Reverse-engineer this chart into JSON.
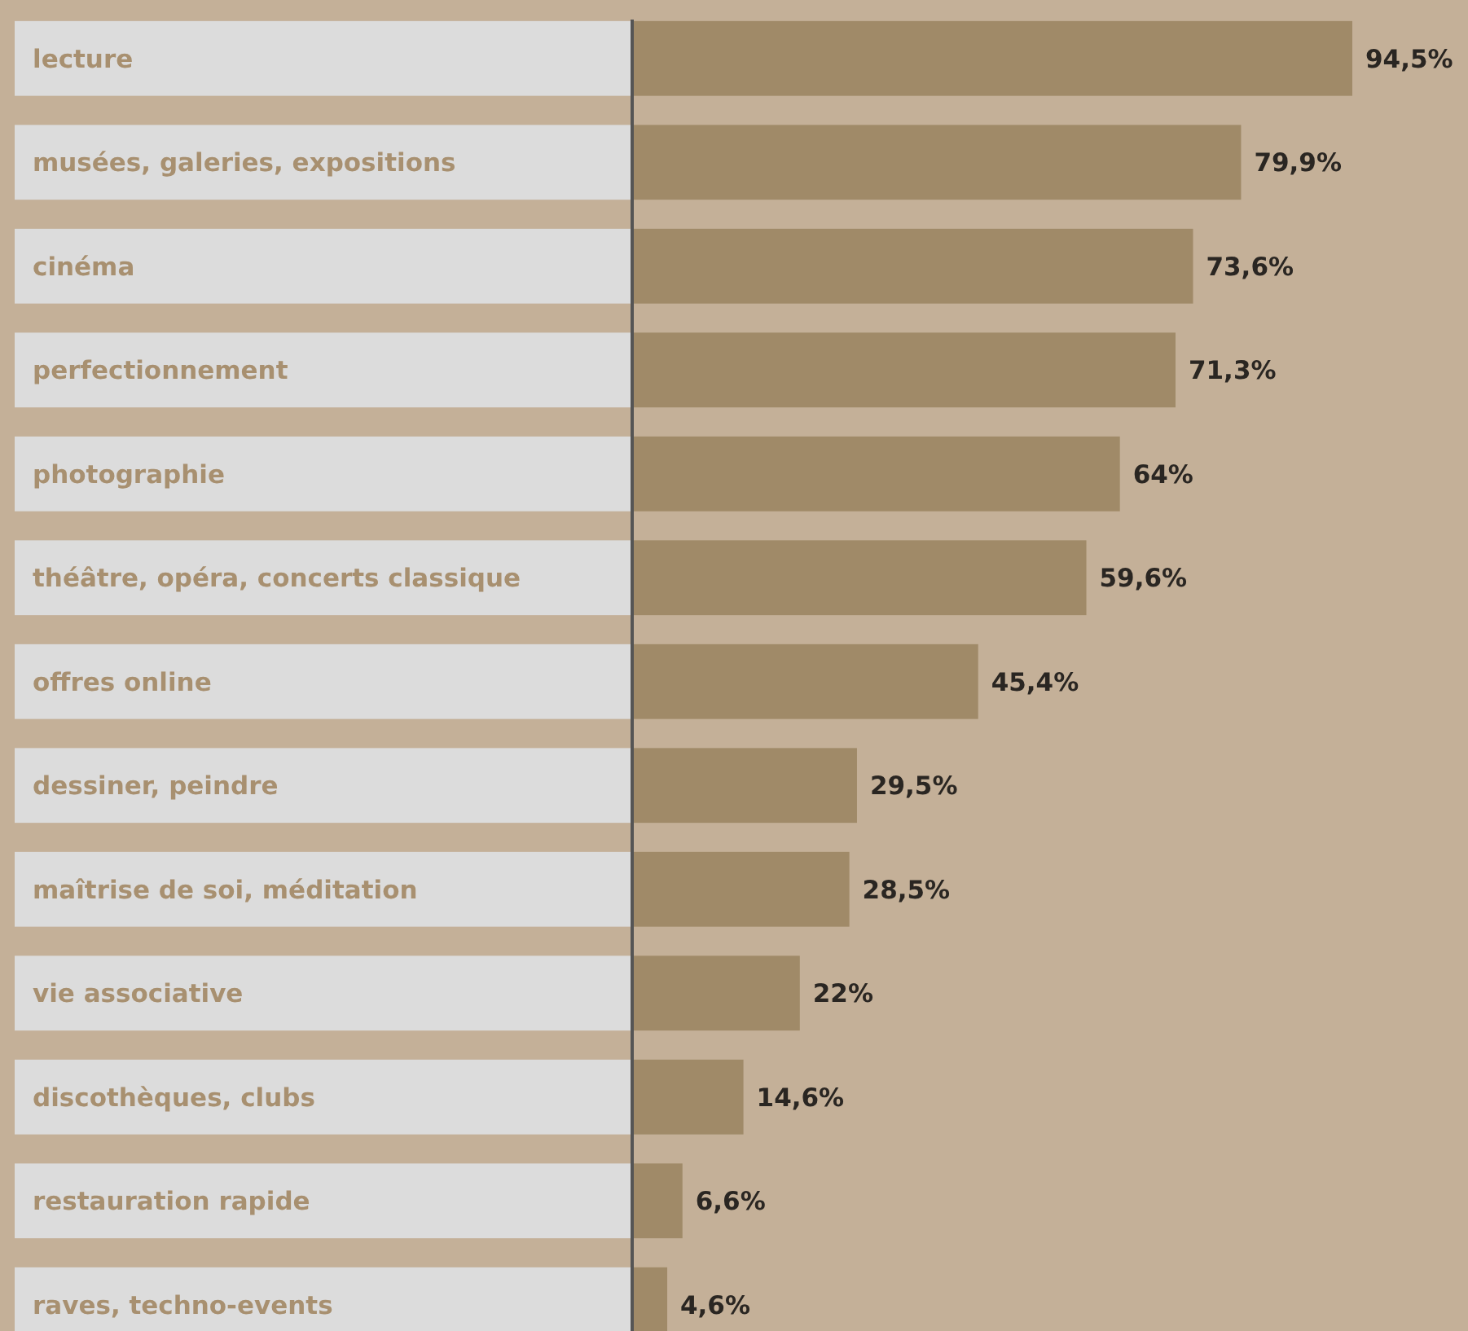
{
  "chart_data": {
    "type": "bar",
    "orientation": "horizontal",
    "categories": [
      "lecture",
      "musées, galeries, expositions",
      "cinéma",
      "perfectionnement",
      "photographie",
      "théâtre, opéra, concerts classique",
      "offres online",
      "dessiner, peindre",
      "maîtrise de soi, méditation",
      "vie associative",
      "discothèques, clubs",
      "restauration rapide",
      "raves, techno-events"
    ],
    "values": [
      94.5,
      79.9,
      73.6,
      71.3,
      64,
      59.6,
      45.4,
      29.5,
      28.5,
      22,
      14.6,
      6.6,
      4.6
    ],
    "value_labels": [
      "94,5%",
      "79,9%",
      "73,6%",
      "71,3%",
      "64%",
      "59,6%",
      "45,4%",
      "29,5%",
      "28,5%",
      "22%",
      "14,6%",
      "6,6%",
      "4,6%"
    ],
    "color": "#a08a68"
  }
}
